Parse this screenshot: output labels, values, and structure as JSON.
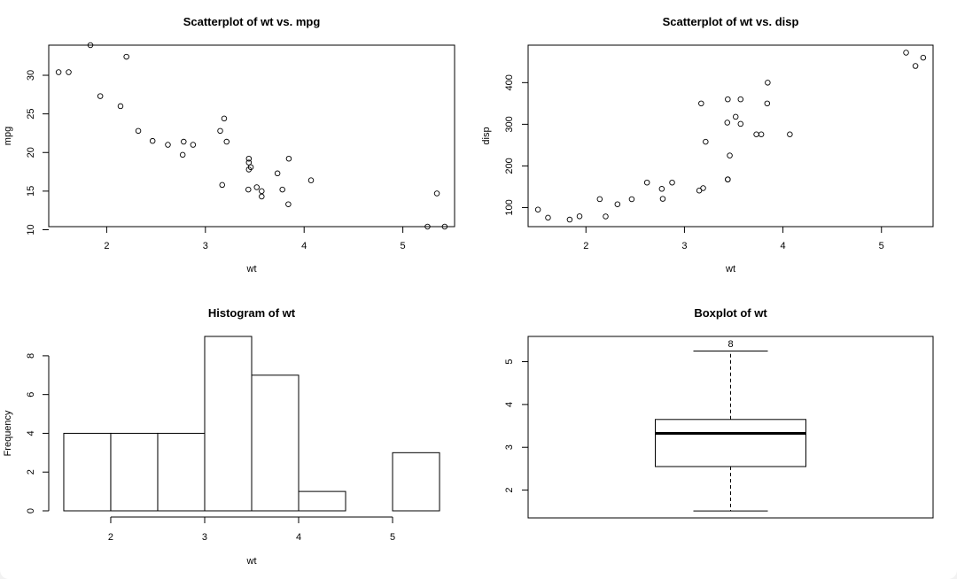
{
  "chart_data": [
    {
      "id": "scatter-wt-mpg",
      "type": "scatter",
      "title": "Scatterplot of wt vs. mpg",
      "xlabel": "wt",
      "ylabel": "mpg",
      "xticks": [
        2,
        3,
        4,
        5
      ],
      "yticks": [
        10,
        15,
        20,
        25,
        30
      ],
      "xlim": [
        1.413,
        5.524
      ],
      "ylim": [
        10.4,
        33.9
      ],
      "points": [
        [
          1.513,
          30.4
        ],
        [
          1.615,
          30.4
        ],
        [
          1.835,
          33.9
        ],
        [
          1.935,
          27.3
        ],
        [
          2.14,
          26.0
        ],
        [
          2.2,
          32.4
        ],
        [
          2.32,
          22.8
        ],
        [
          2.465,
          21.5
        ],
        [
          2.62,
          21.0
        ],
        [
          2.77,
          19.7
        ],
        [
          2.78,
          21.4
        ],
        [
          2.875,
          21.0
        ],
        [
          3.15,
          22.8
        ],
        [
          3.17,
          15.8
        ],
        [
          3.19,
          24.4
        ],
        [
          3.215,
          21.4
        ],
        [
          3.435,
          15.2
        ],
        [
          3.44,
          18.7
        ],
        [
          3.44,
          19.2
        ],
        [
          3.44,
          17.8
        ],
        [
          3.46,
          18.1
        ],
        [
          3.52,
          15.5
        ],
        [
          3.57,
          14.3
        ],
        [
          3.57,
          15.0
        ],
        [
          3.73,
          17.3
        ],
        [
          3.78,
          15.2
        ],
        [
          3.84,
          13.3
        ],
        [
          3.845,
          19.2
        ],
        [
          4.07,
          16.4
        ],
        [
          5.25,
          10.4
        ],
        [
          5.345,
          14.7
        ],
        [
          5.424,
          10.4
        ]
      ]
    },
    {
      "id": "scatter-wt-disp",
      "type": "scatter",
      "title": "Scatterplot of wt vs. disp",
      "xlabel": "wt",
      "ylabel": "disp",
      "xticks": [
        2,
        3,
        4,
        5
      ],
      "yticks": [
        100,
        200,
        300,
        400
      ],
      "xlim": [
        1.413,
        5.524
      ],
      "ylim": [
        54.2,
        490.0
      ],
      "points": [
        [
          1.513,
          95.1
        ],
        [
          1.615,
          75.7
        ],
        [
          1.835,
          71.1
        ],
        [
          1.935,
          79.0
        ],
        [
          2.14,
          120.3
        ],
        [
          2.2,
          78.7
        ],
        [
          2.32,
          108.0
        ],
        [
          2.465,
          120.1
        ],
        [
          2.62,
          160.0
        ],
        [
          2.77,
          145.0
        ],
        [
          2.78,
          121.0
        ],
        [
          2.875,
          160.0
        ],
        [
          3.15,
          140.8
        ],
        [
          3.17,
          350.0
        ],
        [
          3.19,
          146.7
        ],
        [
          3.215,
          258.0
        ],
        [
          3.435,
          304.0
        ],
        [
          3.44,
          360.0
        ],
        [
          3.44,
          167.6
        ],
        [
          3.44,
          167.6
        ],
        [
          3.46,
          225.0
        ],
        [
          3.52,
          318.0
        ],
        [
          3.57,
          301.0
        ],
        [
          3.57,
          360.0
        ],
        [
          3.73,
          275.8
        ],
        [
          3.78,
          275.8
        ],
        [
          3.84,
          350.0
        ],
        [
          3.845,
          400.0
        ],
        [
          4.07,
          275.8
        ],
        [
          5.25,
          472.0
        ],
        [
          5.345,
          440.0
        ],
        [
          5.424,
          460.0
        ]
      ]
    },
    {
      "id": "hist-wt",
      "type": "bar",
      "subtype": "histogram",
      "title": "Histogram of wt",
      "xlabel": "wt",
      "ylabel": "Frequency",
      "xticks": [
        2,
        3,
        4,
        5
      ],
      "yticks": [
        0,
        2,
        4,
        6,
        8
      ],
      "xlim": [
        1.34,
        5.66
      ],
      "ylim": [
        0,
        9
      ],
      "bins": [
        {
          "from": 1.5,
          "to": 2.0,
          "count": 4
        },
        {
          "from": 2.0,
          "to": 2.5,
          "count": 4
        },
        {
          "from": 2.5,
          "to": 3.0,
          "count": 4
        },
        {
          "from": 3.0,
          "to": 3.5,
          "count": 9
        },
        {
          "from": 3.5,
          "to": 4.0,
          "count": 7
        },
        {
          "from": 4.0,
          "to": 4.5,
          "count": 1
        },
        {
          "from": 4.5,
          "to": 5.0,
          "count": 0
        },
        {
          "from": 5.0,
          "to": 5.5,
          "count": 3
        }
      ]
    },
    {
      "id": "box-wt",
      "type": "box",
      "title": "Boxplot of wt",
      "ylabel": "",
      "yticks": [
        2,
        3,
        4,
        5
      ],
      "ylim": [
        1.35,
        5.59
      ],
      "stats": {
        "lower_whisker": 1.513,
        "q1": 2.55,
        "median": 3.325,
        "q3": 3.65,
        "upper_whisker": 5.25
      },
      "outlier_labels": [
        {
          "value": 5.42,
          "label": "8"
        }
      ]
    }
  ]
}
